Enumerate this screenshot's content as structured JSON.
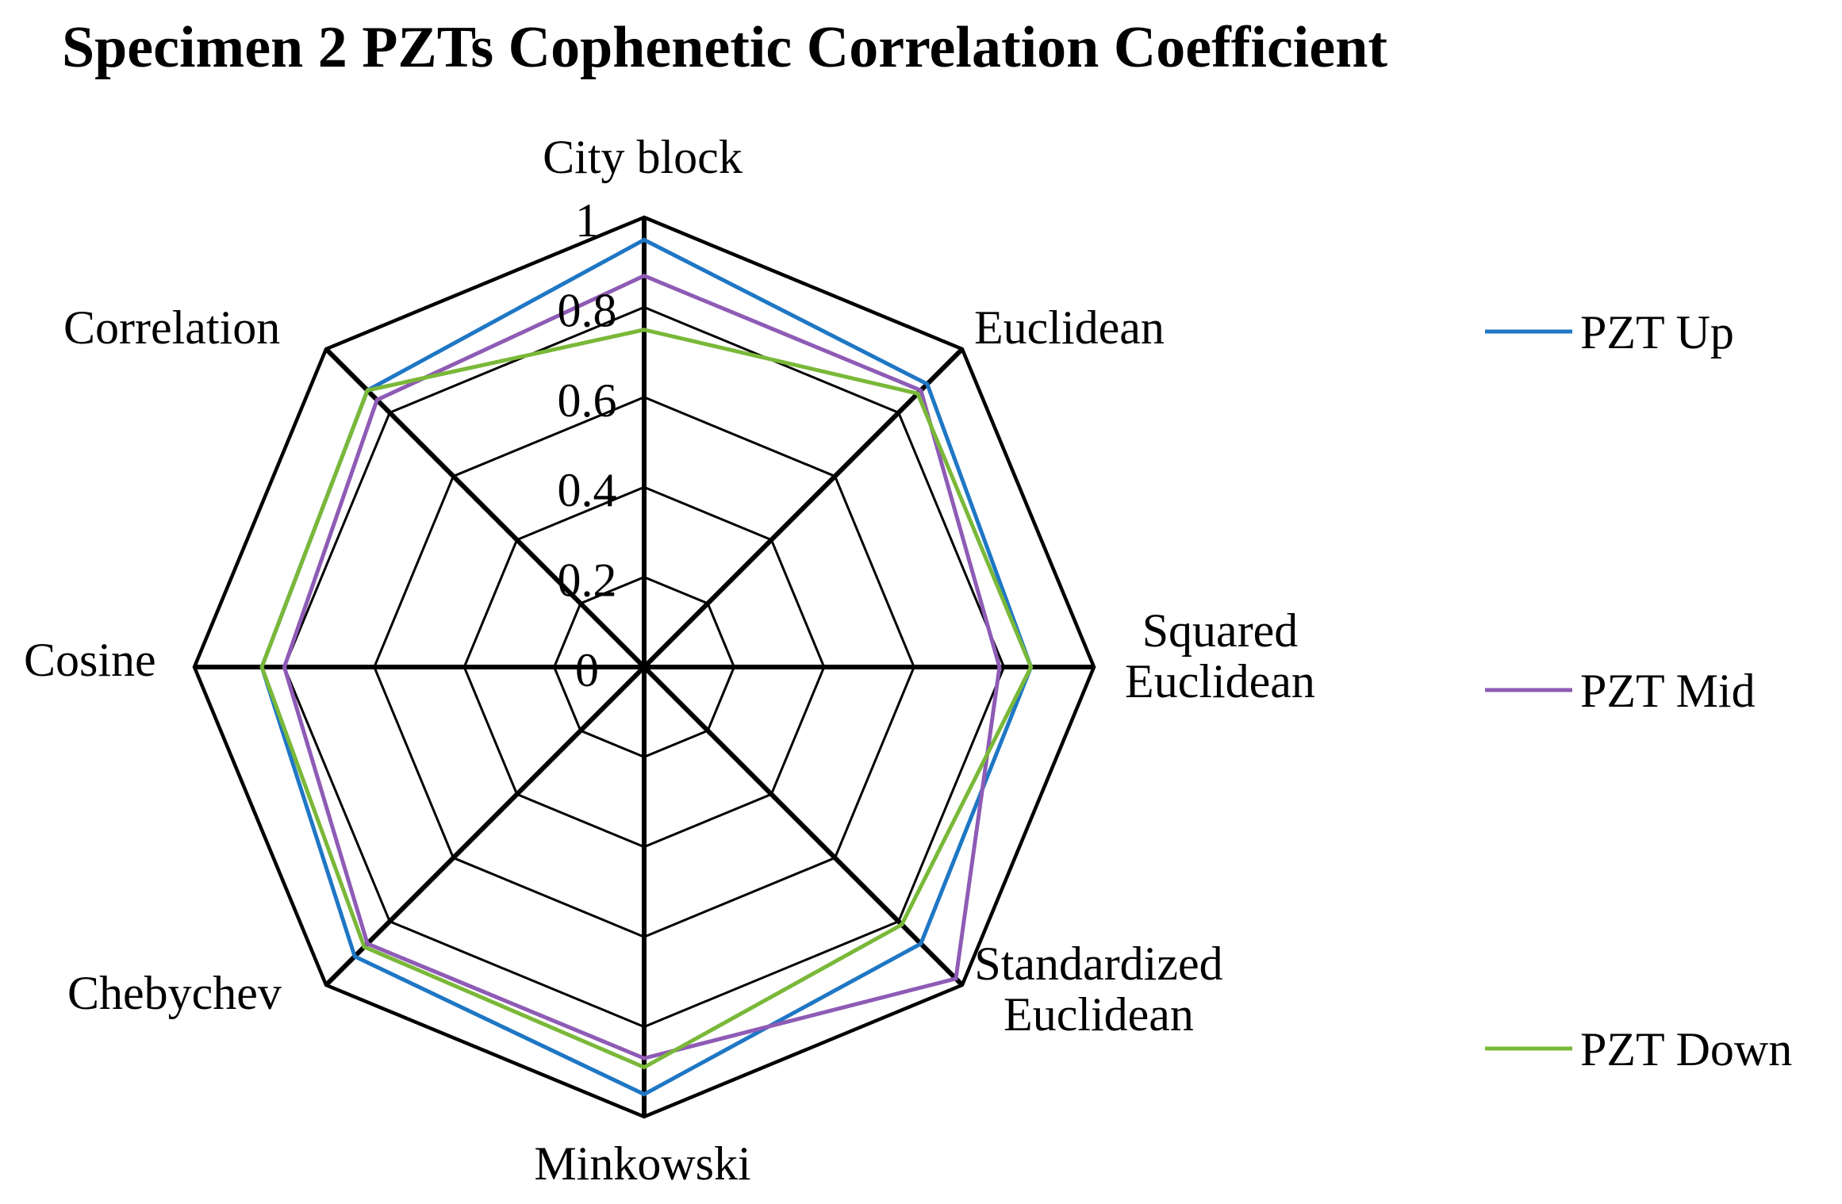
{
  "chart_data": {
    "type": "radar",
    "title": "Specimen 2 PZTs Cophenetic Correlation Coefficient",
    "axes": [
      [
        "City block"
      ],
      [
        "Euclidean"
      ],
      [
        "Squared",
        "Euclidean"
      ],
      [
        "Standardized",
        "Euclidean"
      ],
      [
        "Minkowski"
      ],
      [
        "Chebychev"
      ],
      [
        "Cosine"
      ],
      [
        "Correlation"
      ]
    ],
    "range": [
      0,
      1
    ],
    "ticks": [
      "0",
      "0.2",
      "0.4",
      "0.6",
      "0.8",
      "1"
    ],
    "series": [
      {
        "name": "PZT Up",
        "color": "#1f77c4",
        "values": [
          0.95,
          0.89,
          0.86,
          0.87,
          0.95,
          0.91,
          0.85,
          0.87
        ]
      },
      {
        "name": "PZT Mid",
        "color": "#8e5bb5",
        "values": [
          0.87,
          0.87,
          0.79,
          0.98,
          0.87,
          0.87,
          0.8,
          0.84
        ]
      },
      {
        "name": "PZT Down",
        "color": "#7ab839",
        "values": [
          0.75,
          0.86,
          0.86,
          0.81,
          0.89,
          0.88,
          0.85,
          0.87
        ]
      }
    ],
    "legend_position": "right"
  }
}
